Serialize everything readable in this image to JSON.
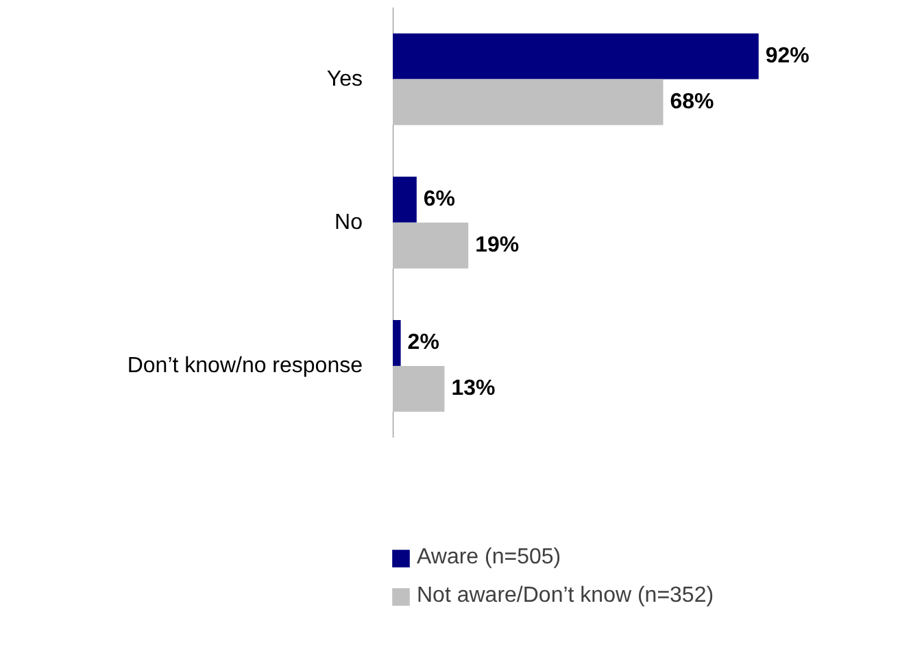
{
  "chart_data": {
    "type": "bar",
    "orientation": "horizontal",
    "categories": [
      "Yes",
      "No",
      "Don’t know/no response"
    ],
    "series": [
      {
        "name": "Aware (n=505)",
        "color": "#000080",
        "values": [
          92,
          6,
          2
        ],
        "value_labels": [
          "92%",
          "6%",
          "2%"
        ]
      },
      {
        "name": "Not aware/Don’t know (n=352)",
        "color": "#c0c0c0",
        "values": [
          68,
          19,
          13
        ],
        "value_labels": [
          "68%",
          "19%",
          "13%"
        ]
      }
    ],
    "legend": "bottom"
  }
}
